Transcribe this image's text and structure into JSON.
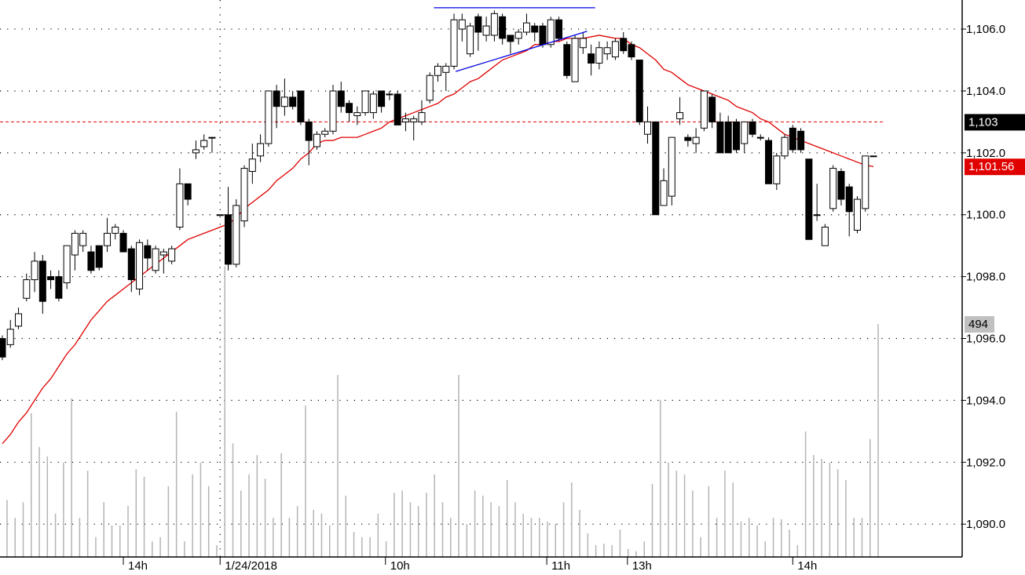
{
  "chart_data": {
    "type": "candlestick",
    "xlim": [
      -0.29,
      119
    ],
    "xticks": [
      {
        "value": 15,
        "label": "14h"
      },
      {
        "value": 27,
        "label": "1/24/2018"
      },
      {
        "value": 47.5,
        "label": "10h"
      },
      {
        "value": 67.5,
        "label": "11h"
      },
      {
        "value": 77.5,
        "label": "13h"
      },
      {
        "value": 98,
        "label": "14h"
      }
    ],
    "vline": 27,
    "ylim": [
      1088.94,
      1106.94
    ],
    "yticks": [
      {
        "value": 1090,
        "label": "1,090.0"
      },
      {
        "value": 1092,
        "label": "1,092.0"
      },
      {
        "value": 1094,
        "label": "1,094.0"
      },
      {
        "value": 1096,
        "label": "1,096.0"
      },
      {
        "value": 1098,
        "label": "1,098.0"
      },
      {
        "value": 1100,
        "label": "1,100.0"
      },
      {
        "value": 1102,
        "label": "1,102.0"
      },
      {
        "value": 1104,
        "label": "1,104.0"
      },
      {
        "value": 1106,
        "label": "1,106.0"
      }
    ],
    "y2lim": [
      0,
      1181
    ],
    "grid": true,
    "up_color": "#ffffff",
    "down_color": "#000000",
    "open": [
      1096.0,
      1095.8,
      1096.4,
      1097.3,
      1097.9,
      1098.5,
      1098.0,
      1098.0,
      1097.8,
      1098.7,
      1099.0,
      1098.8,
      1099.0,
      1099.0,
      1099.4,
      1099.4,
      1098.9,
      1097.6,
      1099.0,
      1098.2,
      1098.7,
      1098.5,
      1099.6,
      1101.0,
      1102.0,
      1102.2,
      1102.5,
      1100.0,
      1100.0,
      1098.4,
      1099.8,
      1101.4,
      1101.9,
      1102.3,
      1104.0,
      1103.5,
      1103.8,
      1104.0,
      1103.0,
      1102.2,
      1102.6,
      1102.7,
      1104.0,
      1103.6,
      1103.2,
      1103.3,
      1103.3,
      1104.0,
      1103.9,
      1103.9,
      1103.0,
      1103.0,
      1103.0,
      1103.7,
      1104.5,
      1104.6,
      1104.8,
      1106.0,
      1105.2,
      1106.4,
      1105.8,
      1105.8,
      1106.4,
      1105.8,
      1105.7,
      1105.9,
      1106.1,
      1106.1,
      1105.5,
      1106.3,
      1105.5,
      1104.3,
      1105.4,
      1105.2,
      1104.9,
      1105.2,
      1105.1,
      1105.7,
      1105.5,
      1105.0,
      1102.6,
      1103.0,
      1100.3,
      1100.6,
      1103.1,
      1102.5,
      1102.3,
      1102.8,
      1103.8,
      1103.0,
      1103.0,
      1103.0,
      1102.3,
      1103.0,
      1102.5,
      1102.4,
      1101.0,
      1101.9,
      1102.8,
      1102.7,
      1101.8,
      1100.0,
      1099.0,
      1100.2,
      1101.4,
      1100.9,
      1099.5,
      1100.2,
      1101.9
    ],
    "high": [
      1096.1,
      1096.6,
      1097.0,
      1098.1,
      1098.8,
      1098.7,
      1098.2,
      1098.2,
      1099.0,
      1099.5,
      1099.5,
      1099.0,
      1099.0,
      1099.9,
      1099.7,
      1099.5,
      1099.0,
      1099.2,
      1099.2,
      1099.0,
      1098.9,
      1099.0,
      1101.5,
      1101.0,
      1102.4,
      1102.6,
      1102.5,
      1100.0,
      1100.9,
      1100.5,
      1101.6,
      1102.3,
      1102.6,
      1104.0,
      1104.2,
      1104.4,
      1104.0,
      1104.0,
      1103.1,
      1102.7,
      1102.8,
      1104.2,
      1104.3,
      1103.7,
      1103.5,
      1104.0,
      1104.0,
      1104.0,
      1104.0,
      1104.0,
      1103.3,
      1103.2,
      1103.7,
      1104.6,
      1104.9,
      1104.9,
      1106.5,
      1106.5,
      1106.2,
      1106.5,
      1106.4,
      1106.6,
      1106.5,
      1105.8,
      1106.0,
      1106.5,
      1106.2,
      1106.2,
      1106.4,
      1106.4,
      1105.6,
      1105.8,
      1105.9,
      1105.5,
      1105.6,
      1105.6,
      1105.7,
      1105.9,
      1105.6,
      1105.0,
      1103.5,
      1103.0,
      1101.5,
      1102.5,
      1103.8,
      1102.6,
      1102.8,
      1104.0,
      1103.9,
      1103.3,
      1103.2,
      1103.1,
      1103.0,
      1103.1,
      1102.6,
      1102.5,
      1102.0,
      1102.6,
      1102.9,
      1102.8,
      1101.8,
      1101.0,
      1099.7,
      1101.6,
      1101.5,
      1101.0,
      1100.6,
      1101.9,
      1101.9
    ],
    "low": [
      1095.3,
      1095.7,
      1096.3,
      1097.2,
      1097.5,
      1096.8,
      1097.6,
      1097.2,
      1097.6,
      1098.2,
      1098.8,
      1098.1,
      1098.2,
      1098.8,
      1099.2,
      1098.8,
      1097.5,
      1097.4,
      1098.2,
      1098.1,
      1098.1,
      1098.4,
      1099.5,
      1100.3,
      1101.8,
      1102.1,
      1102.0,
      1100.0,
      1098.2,
      1098.3,
      1099.6,
      1101.0,
      1101.7,
      1102.2,
      1102.8,
      1103.2,
      1103.4,
      1102.9,
      1101.6,
      1102.1,
      1102.5,
      1102.6,
      1103.3,
      1103.0,
      1102.9,
      1103.2,
      1103.1,
      1103.3,
      1103.7,
      1102.9,
      1102.7,
      1102.4,
      1102.9,
      1103.6,
      1104.3,
      1104.0,
      1104.7,
      1105.6,
      1105.1,
      1105.3,
      1105.6,
      1105.6,
      1105.5,
      1105.2,
      1105.5,
      1105.8,
      1105.6,
      1105.4,
      1105.4,
      1105.6,
      1104.4,
      1104.3,
      1105.2,
      1104.5,
      1104.7,
      1105.0,
      1105.0,
      1105.2,
      1105.0,
      1102.9,
      1102.3,
      1100.0,
      1100.3,
      1100.3,
      1102.9,
      1102.2,
      1102.0,
      1102.7,
      1102.8,
      1102.0,
      1102.0,
      1102.0,
      1102.0,
      1102.5,
      1102.4,
      1101.0,
      1100.8,
      1101.8,
      1102.0,
      1102.0,
      1099.2,
      1099.8,
      1099.0,
      1100.1,
      1100.3,
      1099.3,
      1099.4,
      1100.1,
      1101.9
    ],
    "close": [
      1095.4,
      1096.3,
      1096.8,
      1097.9,
      1098.5,
      1097.2,
      1097.9,
      1097.3,
      1099.0,
      1099.4,
      1099.4,
      1098.2,
      1098.3,
      1099.4,
      1099.6,
      1098.8,
      1097.9,
      1099.1,
      1098.6,
      1098.9,
      1098.8,
      1098.9,
      1101.0,
      1100.5,
      1102.1,
      1102.4,
      1102.5,
      1100.0,
      1098.4,
      1100.3,
      1101.5,
      1101.8,
      1102.3,
      1104.0,
      1103.5,
      1103.8,
      1103.5,
      1103.0,
      1102.4,
      1102.6,
      1102.7,
      1104.0,
      1103.5,
      1103.3,
      1103.3,
      1104.0,
      1103.9,
      1103.5,
      1103.9,
      1102.9,
      1103.1,
      1103.1,
      1103.3,
      1104.5,
      1104.8,
      1104.8,
      1106.3,
      1106.3,
      1106.1,
      1105.9,
      1106.1,
      1106.5,
      1105.7,
      1105.6,
      1105.9,
      1106.2,
      1105.9,
      1105.5,
      1106.3,
      1105.7,
      1104.5,
      1105.7,
      1105.7,
      1104.9,
      1105.4,
      1105.4,
      1105.6,
      1105.3,
      1105.1,
      1103.0,
      1103.0,
      1100.0,
      1101.1,
      1102.5,
      1103.3,
      1102.4,
      1102.5,
      1104.0,
      1103.0,
      1102.0,
      1102.0,
      1102.1,
      1103.0,
      1102.6,
      1102.5,
      1101.0,
      1101.9,
      1102.5,
      1102.1,
      1102.1,
      1099.2,
      1100.0,
      1099.6,
      1101.5,
      1100.5,
      1100.1,
      1100.5,
      1101.9,
      1101.9
    ],
    "volume": {
      "color": "#b4b4b4",
      "values": [
        121,
        83,
        116,
        305,
        233,
        213,
        92,
        200,
        336,
        83,
        183,
        42,
        116,
        67,
        67,
        108,
        186,
        170,
        33,
        42,
        150,
        308,
        33,
        175,
        200,
        150,
        25,
        616,
        241,
        141,
        175,
        216,
        166,
        83,
        220,
        83,
        108,
        321,
        100,
        92,
        67,
        386,
        130,
        53,
        42,
        42,
        92,
        33,
        136,
        141,
        116,
        108,
        136,
        175,
        116,
        83,
        386,
        70,
        141,
        130,
        116,
        108,
        163,
        116,
        92,
        83,
        83,
        75,
        70,
        116,
        158,
        100,
        50,
        25,
        28,
        25,
        58,
        17,
        12,
        33,
        155,
        333,
        200,
        183,
        175,
        141,
        42,
        150,
        83,
        183,
        158,
        75,
        83,
        67,
        33,
        83,
        80,
        58,
        25,
        266,
        216,
        208,
        200,
        186,
        163,
        83,
        83,
        250,
        494
      ]
    },
    "moving_average": {
      "color": "#e00000",
      "end_label": "1,101.56",
      "values": [
        1092.6,
        1092.9,
        1093.3,
        1093.6,
        1094.0,
        1094.4,
        1094.7,
        1095.1,
        1095.5,
        1095.8,
        1096.2,
        1096.6,
        1096.9,
        1097.2,
        1097.4,
        1097.6,
        1097.8,
        1098.0,
        1098.2,
        1098.4,
        1098.6,
        1098.8,
        1099.0,
        1099.2,
        1099.3,
        1099.4,
        1099.5,
        1099.6,
        1099.7,
        1099.9,
        1100.2,
        1100.4,
        1100.6,
        1100.8,
        1101.1,
        1101.3,
        1101.5,
        1101.8,
        1102.0,
        1102.3,
        1102.4,
        1102.4,
        1102.5,
        1102.5,
        1102.5,
        1102.6,
        1102.7,
        1102.8,
        1103.0,
        1103.1,
        1103.2,
        1103.3,
        1103.4,
        1103.5,
        1103.6,
        1103.8,
        1103.9,
        1104.1,
        1104.3,
        1104.4,
        1104.6,
        1104.8,
        1105.0,
        1105.1,
        1105.2,
        1105.3,
        1105.5,
        1105.5,
        1105.6,
        1105.6,
        1105.7,
        1105.7,
        1105.7,
        1105.75,
        1105.8,
        1105.75,
        1105.7,
        1105.7,
        1105.5,
        1105.4,
        1105.2,
        1105.0,
        1104.7,
        1104.6,
        1104.4,
        1104.2,
        1104.1,
        1104.0,
        1103.9,
        1103.8,
        1103.7,
        1103.5,
        1103.4,
        1103.3,
        1103.1,
        1103.0,
        1102.8,
        1102.6,
        1102.5,
        1102.4,
        1102.3,
        1102.2,
        1102.1,
        1102.0,
        1101.9,
        1101.8,
        1101.7,
        1101.6,
        1101.56
      ]
    },
    "hline": {
      "value": 1103,
      "label": "1,103",
      "color": "#e00000"
    },
    "trendlines": [
      {
        "color": "#0000e0",
        "x": [
          53.5,
          73.5
        ],
        "y": [
          1106.69,
          1106.69
        ]
      },
      {
        "color": "#0000e0",
        "x": [
          56.2,
          72.5
        ],
        "y": [
          1104.63,
          1105.93
        ]
      }
    ]
  }
}
